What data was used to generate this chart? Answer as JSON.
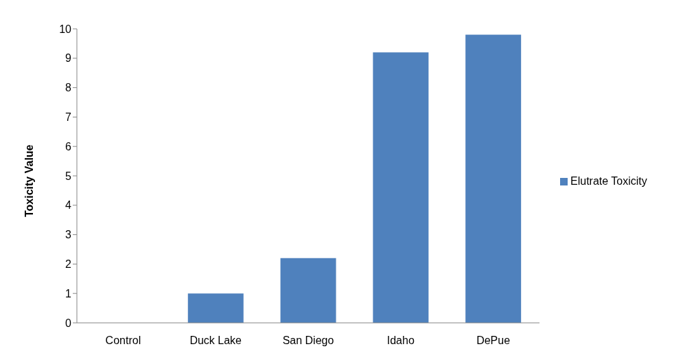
{
  "chart_data": {
    "type": "bar",
    "ylabel": "Toxicity Value",
    "categories": [
      "Control",
      "Duck Lake",
      "San Diego",
      "Idaho",
      "DePue"
    ],
    "series": [
      {
        "name": "Elutrate Toxicity",
        "color": "#4f81bd",
        "values": [
          0,
          1,
          2.2,
          9.2,
          9.8
        ]
      }
    ],
    "ylim": [
      0,
      10
    ],
    "yticks": [
      0,
      1,
      2,
      3,
      4,
      5,
      6,
      7,
      8,
      9,
      10
    ],
    "grid": false,
    "legend": "right"
  }
}
